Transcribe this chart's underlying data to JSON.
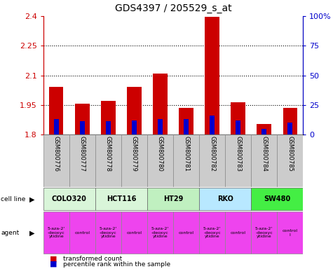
{
  "title": "GDS4397 / 205529_s_at",
  "samples": [
    "GSM800776",
    "GSM800777",
    "GSM800778",
    "GSM800779",
    "GSM800780",
    "GSM800781",
    "GSM800782",
    "GSM800783",
    "GSM800784",
    "GSM800785"
  ],
  "transformed_counts": [
    2.04,
    1.955,
    1.97,
    2.04,
    2.11,
    1.935,
    2.395,
    1.965,
    1.855,
    1.935
  ],
  "percentile_ranks": [
    13,
    11,
    11,
    12,
    13,
    13,
    16,
    12,
    5,
    10
  ],
  "ymin": 1.8,
  "ymax": 2.4,
  "yticks_left": [
    1.8,
    1.95,
    2.1,
    2.25,
    2.4
  ],
  "yticks_right": [
    0,
    25,
    50,
    75,
    100
  ],
  "cell_lines": [
    {
      "name": "COLO320",
      "start": 0,
      "end": 2,
      "color": "#d9f5d9"
    },
    {
      "name": "HCT116",
      "start": 2,
      "end": 4,
      "color": "#d9f5d9"
    },
    {
      "name": "HT29",
      "start": 4,
      "end": 6,
      "color": "#c0f0c0"
    },
    {
      "name": "RKO",
      "start": 6,
      "end": 8,
      "color": "#b8e8ff"
    },
    {
      "name": "SW480",
      "start": 8,
      "end": 10,
      "color": "#44ee44"
    }
  ],
  "agents": [
    {
      "name": "5-aza-2'\n-deoxyc\nytidine",
      "start": 0,
      "end": 1
    },
    {
      "name": "control",
      "start": 1,
      "end": 2
    },
    {
      "name": "5-aza-2'\n-deoxyc\nytidine",
      "start": 2,
      "end": 3
    },
    {
      "name": "control",
      "start": 3,
      "end": 4
    },
    {
      "name": "5-aza-2'\n-deoxyc\nytidine",
      "start": 4,
      "end": 5
    },
    {
      "name": "control",
      "start": 5,
      "end": 6
    },
    {
      "name": "5-aza-2'\n-deoxyc\nytidine",
      "start": 6,
      "end": 7
    },
    {
      "name": "control",
      "start": 7,
      "end": 8
    },
    {
      "name": "5-aza-2'\n-deoxyc\nytidine",
      "start": 8,
      "end": 9
    },
    {
      "name": "control\nl",
      "start": 9,
      "end": 10
    }
  ],
  "agent_color": "#ee44ee",
  "bar_color": "#cc0000",
  "percentile_color": "#0000cc",
  "bar_width": 0.55,
  "pct_bar_width": 0.18,
  "sample_bg": "#cccccc",
  "background_color": "#ffffff",
  "label_color_left": "#cc0000",
  "label_color_right": "#0000cc"
}
